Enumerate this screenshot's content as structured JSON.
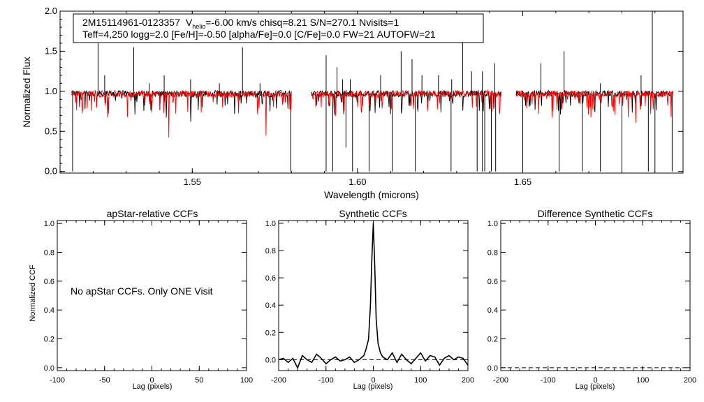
{
  "header": {
    "line1_star": "2M15114961-0123357",
    "line1_v": "V",
    "line1_vsub": "helio",
    "line1_rest": "=-6.00 km/s  chisq=8.21  S/N=270.1  Nvisits=1",
    "line2": "Teff=4,250 logg=2.0 [Fe/H]=-0.50 [alpha/Fe]=0.0 [C/Fe]=0.0 FW=21 AUTOFW=21"
  },
  "chart_data": [
    {
      "id": "spectrum",
      "type": "line",
      "xlabel": "Wavelength (microns)",
      "ylabel": "Normalized Flux",
      "xlim": [
        1.51,
        1.6985
      ],
      "ylim": [
        -0.02,
        2.0
      ],
      "xticks": [
        "1.55",
        "1.60",
        "1.65"
      ],
      "xtick_values": [
        1.55,
        1.6,
        1.65
      ],
      "yticks": [
        "0.0",
        "0.5",
        "1.0",
        "1.5",
        "2.0"
      ],
      "ytick_values": [
        0.0,
        0.5,
        1.0,
        1.5,
        2.0
      ],
      "series": [
        {
          "color": "#000000",
          "role": "observed",
          "continuum": 0.97
        },
        {
          "color": "#ff0000",
          "role": "model",
          "continuum": 0.97
        }
      ],
      "chips": [
        [
          1.5135,
          1.58
        ],
        [
          1.586,
          1.6435
        ],
        [
          1.648,
          1.6955
        ]
      ],
      "emission_spikes": [
        [
          1.5215,
          1.6
        ],
        [
          1.5235,
          1.2
        ],
        [
          1.5323,
          1.55
        ],
        [
          1.537,
          1.1
        ],
        [
          1.5415,
          1.2
        ],
        [
          1.5495,
          1.15
        ],
        [
          1.5582,
          1.1
        ],
        [
          1.5652,
          1.55
        ],
        [
          1.5705,
          1.1
        ],
        [
          1.5905,
          1.45
        ],
        [
          1.5938,
          1.3
        ],
        [
          1.5955,
          1.15
        ],
        [
          1.5978,
          1.15
        ],
        [
          1.607,
          1.2
        ],
        [
          1.6132,
          1.5
        ],
        [
          1.6165,
          1.4
        ],
        [
          1.6195,
          1.2
        ],
        [
          1.6245,
          1.2
        ],
        [
          1.6285,
          1.15
        ],
        [
          1.6318,
          1.7
        ],
        [
          1.6345,
          1.25
        ],
        [
          1.6378,
          1.25
        ],
        [
          1.6415,
          1.35
        ],
        [
          1.6555,
          1.35
        ],
        [
          1.6625,
          1.5
        ],
        [
          1.6735,
          1.1
        ],
        [
          1.6858,
          1.2
        ],
        [
          1.6892,
          2.0
        ]
      ],
      "absorption_dips": [
        [
          1.5138,
          0.0
        ],
        [
          1.5798,
          0.0
        ],
        [
          1.5905,
          0.0
        ],
        [
          1.5925,
          0.0
        ],
        [
          1.5965,
          0.3
        ],
        [
          1.5985,
          0.0
        ],
        [
          1.6035,
          0.0
        ],
        [
          1.6105,
          0.0
        ],
        [
          1.6175,
          0.0
        ],
        [
          1.6283,
          0.0
        ],
        [
          1.6362,
          0.0
        ],
        [
          1.6378,
          0.0
        ],
        [
          1.6385,
          0.0
        ],
        [
          1.6405,
          0.0
        ],
        [
          1.6418,
          0.0
        ],
        [
          1.65,
          0.0
        ],
        [
          1.661,
          0.0
        ],
        [
          1.668,
          0.0
        ],
        [
          1.6735,
          0.0
        ],
        [
          1.68,
          0.0
        ],
        [
          1.688,
          0.0
        ],
        [
          1.69,
          0.0
        ],
        [
          1.6952,
          0.0
        ]
      ]
    },
    {
      "id": "apstar-ccf",
      "type": "line",
      "title": "apStar-relative CCFs",
      "xlabel": "Lag (pixels)",
      "ylabel": "Normalized CCF",
      "xlim": [
        -100,
        100
      ],
      "ylim": [
        -0.02,
        1.02
      ],
      "xticks": [
        "-100",
        "-50",
        "0",
        "50",
        "100"
      ],
      "xtick_values": [
        -100,
        -50,
        0,
        50,
        100
      ],
      "yticks": [
        "0.0",
        "0.2",
        "0.4",
        "0.6",
        "0.8",
        "1.0"
      ],
      "ytick_values": [
        0.0,
        0.2,
        0.4,
        0.6,
        0.8,
        1.0
      ],
      "annotation": "No apStar CCFs.  Only ONE Visit"
    },
    {
      "id": "synthetic-ccf",
      "type": "line",
      "title": "Synthetic CCFs",
      "xlabel": "Lag (pixels)",
      "xlim": [
        -200,
        200
      ],
      "ylim": [
        -0.08,
        1.02
      ],
      "xticks": [
        "-200",
        "-100",
        "0",
        "100",
        "200"
      ],
      "xtick_values": [
        -200,
        -100,
        0,
        100,
        200
      ],
      "yticks": [
        "0.0",
        "0.2",
        "0.4",
        "0.6",
        "0.8",
        "1.0"
      ],
      "ytick_values": [
        0.0,
        0.2,
        0.4,
        0.6,
        0.8,
        1.0
      ],
      "baseline": 0.0,
      "x": [
        -200,
        -190,
        -180,
        -170,
        -160,
        -150,
        -140,
        -130,
        -120,
        -110,
        -100,
        -90,
        -80,
        -70,
        -60,
        -50,
        -40,
        -30,
        -20,
        -15,
        -10,
        -6,
        -3,
        0,
        3,
        6,
        10,
        15,
        20,
        30,
        40,
        50,
        60,
        70,
        80,
        90,
        100,
        110,
        120,
        130,
        140,
        150,
        160,
        170,
        180,
        190,
        200
      ],
      "y": [
        0.0,
        0.01,
        -0.02,
        0.01,
        -0.06,
        0.03,
        0.0,
        -0.02,
        0.04,
        0.01,
        -0.03,
        0.0,
        0.02,
        -0.01,
        0.0,
        0.02,
        -0.02,
        0.0,
        0.03,
        0.08,
        0.15,
        0.4,
        0.75,
        1.0,
        0.7,
        0.3,
        0.12,
        0.05,
        0.02,
        0.0,
        0.05,
        -0.02,
        0.04,
        0.0,
        -0.03,
        0.01,
        0.05,
        -0.01,
        0.03,
        0.02,
        -0.04,
        0.01,
        0.03,
        0.0,
        0.02,
        0.01,
        -0.04
      ]
    },
    {
      "id": "difference-ccf",
      "type": "line",
      "title": "Difference Synthetic CCFs",
      "xlabel": "Lag (pixels)",
      "xlim": [
        -200,
        200
      ],
      "ylim": [
        -0.02,
        1.02
      ],
      "xticks": [
        "-200",
        "-100",
        "0",
        "100",
        "200"
      ],
      "xtick_values": [
        -200,
        -100,
        0,
        100,
        200
      ],
      "yticks": [
        "0.0",
        "0.2",
        "0.4",
        "0.6",
        "0.8",
        "1.0"
      ],
      "ytick_values": [
        0.0,
        0.2,
        0.4,
        0.6,
        0.8,
        1.0
      ],
      "baseline": 0.0
    }
  ]
}
